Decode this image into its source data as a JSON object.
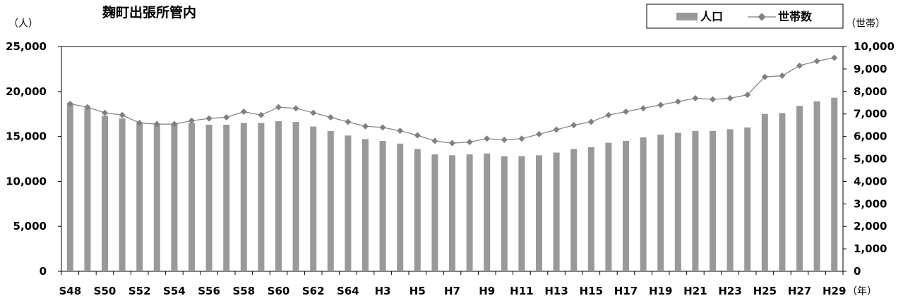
{
  "chart_data": {
    "type": "bar",
    "title": "麹町出張所管内",
    "left_unit": "（人）",
    "right_unit": "（世帯）",
    "x_unit": "（年）",
    "categories": [
      "S48",
      "S49",
      "S50",
      "S51",
      "S52",
      "S53",
      "S54",
      "S55",
      "S56",
      "S57",
      "S58",
      "S59",
      "S60",
      "S61",
      "S62",
      "S63",
      "S64",
      "H2",
      "H3",
      "H4",
      "H5",
      "H6",
      "H7",
      "H8",
      "H9",
      "H10",
      "H11",
      "H12",
      "H13",
      "H14",
      "H15",
      "H16",
      "H17",
      "H18",
      "H19",
      "H20",
      "H21",
      "H22",
      "H23",
      "H24",
      "H25",
      "H26",
      "H27",
      "H28",
      "H29"
    ],
    "x_tick_labels": [
      "S48",
      "",
      "S50",
      "",
      "S52",
      "",
      "S54",
      "",
      "S56",
      "",
      "S58",
      "",
      "S60",
      "",
      "S62",
      "",
      "S64",
      "",
      "H3",
      "",
      "H5",
      "",
      "H7",
      "",
      "H9",
      "",
      "H11",
      "",
      "H13",
      "",
      "H15",
      "",
      "H17",
      "",
      "H19",
      "",
      "H21",
      "",
      "H23",
      "",
      "H25",
      "",
      "H27",
      "",
      "H29"
    ],
    "series": [
      {
        "name": "人口",
        "type": "bar",
        "axis": "left",
        "color": "#999999",
        "values": [
          18700,
          18100,
          17300,
          17000,
          16500,
          16400,
          16400,
          16500,
          16300,
          16300,
          16500,
          16500,
          16700,
          16600,
          16100,
          15600,
          15100,
          14700,
          14500,
          14200,
          13600,
          13000,
          12900,
          13000,
          13100,
          12800,
          12800,
          12900,
          13200,
          13600,
          13800,
          14300,
          14500,
          14900,
          15200,
          15400,
          15600,
          15600,
          15800,
          16000,
          17500,
          17600,
          18400,
          18900,
          19300
        ]
      },
      {
        "name": "世帯数",
        "type": "line",
        "axis": "right",
        "color": "#808080",
        "values": [
          7450,
          7300,
          7050,
          6950,
          6600,
          6550,
          6550,
          6700,
          6800,
          6850,
          7100,
          6950,
          7300,
          7250,
          7050,
          6850,
          6650,
          6450,
          6400,
          6250,
          6050,
          5800,
          5700,
          5750,
          5900,
          5850,
          5900,
          6100,
          6300,
          6500,
          6650,
          6950,
          7100,
          7250,
          7400,
          7550,
          7700,
          7650,
          7700,
          7850,
          8650,
          8700,
          9150,
          9350,
          9500
        ]
      }
    ],
    "y_left": {
      "min": 0,
      "max": 25000,
      "step": 5000,
      "tick_labels": [
        "0",
        "5,000",
        "10,000",
        "15,000",
        "20,000",
        "25,000"
      ]
    },
    "y_right": {
      "min": 0,
      "max": 10000,
      "step": 1000,
      "tick_labels": [
        "0",
        "1,000",
        "2,000",
        "3,000",
        "4,000",
        "5,000",
        "6,000",
        "7,000",
        "8,000",
        "9,000",
        "10,000"
      ]
    },
    "legend": {
      "placement": "top-right",
      "items": [
        "人口",
        "世帯数"
      ]
    },
    "grid": false
  }
}
